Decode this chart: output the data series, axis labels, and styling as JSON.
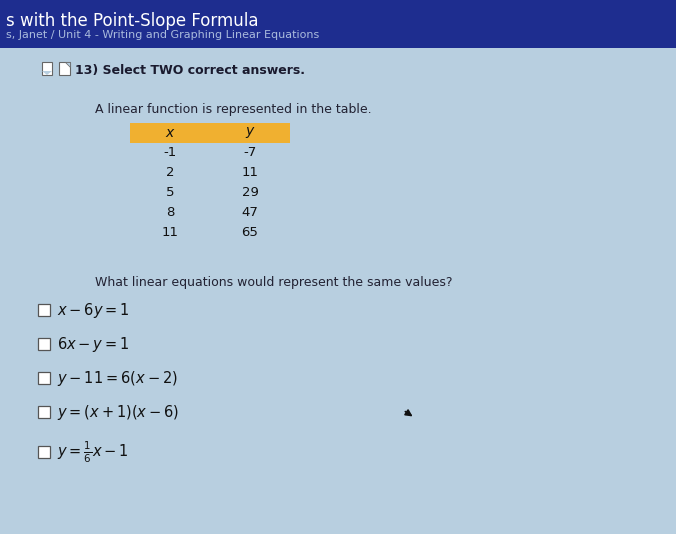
{
  "title_bar_color": "#1e2d8f",
  "title_text": "s with the Point-Slope Formula",
  "subtitle_text": "s, Janet / Unit 4 - Writing and Graphing Linear Equations",
  "bg_color": "#b8cfe0",
  "question_number": "13) Select TWO correct answers.",
  "table_prompt": "A linear function is represented in the table.",
  "table_header": [
    "x",
    "y"
  ],
  "table_header_bg": "#f0b030",
  "table_data": [
    [
      -1,
      -7
    ],
    [
      2,
      11
    ],
    [
      5,
      29
    ],
    [
      8,
      47
    ],
    [
      11,
      65
    ]
  ],
  "question_text": "What linear equations would represent the same values?",
  "title_fontsize": 12,
  "subtitle_fontsize": 8,
  "figw": 6.76,
  "figh": 5.34,
  "dpi": 100
}
